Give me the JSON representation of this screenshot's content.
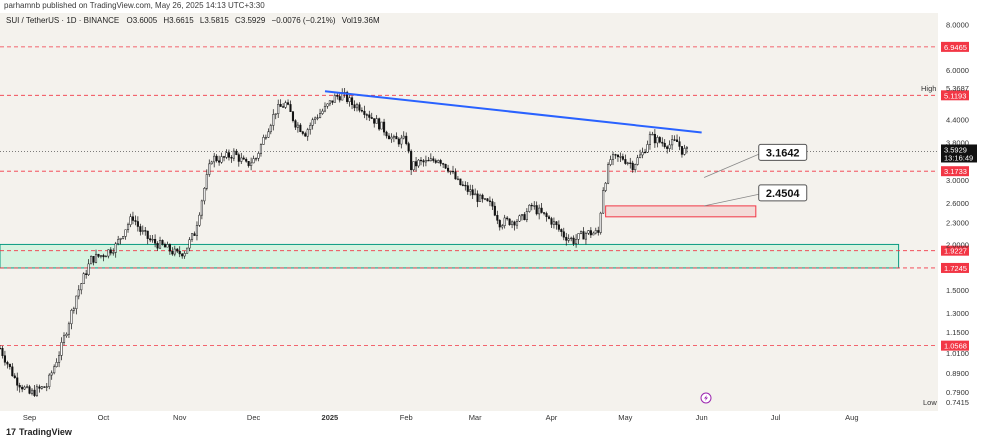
{
  "header": {
    "published_by": "parhamnb published on TradingView.com, May 26, 2025 14:13 UTC+3:30",
    "symbol_line": "SUI / TetherUS · 1D · BINANCE",
    "o_label": "O",
    "o_value": "3.6005",
    "h_label": "H",
    "h_value": "3.6615",
    "l_label": "L",
    "l_value": "3.5815",
    "c_label": "C",
    "c_value": "3.5929",
    "change": "−0.0076 (−0.21%)",
    "vol": "Vol19.36M"
  },
  "footer": {
    "brand": "TradingView",
    "brand_mark": "17"
  },
  "colors": {
    "bg": "#f4f2ed",
    "candle": "#111111",
    "trend": "#2962ff",
    "level": "#f23645",
    "zone_fill": "#d6f3e0",
    "zone_stroke": "#089981",
    "red_box": "#f23645"
  },
  "chart_data": {
    "type": "candlestick",
    "title": "SUI / TetherUS · 1D · BINANCE",
    "y_scale": "log",
    "ylim": [
      0.7,
      8.6
    ],
    "y_ticks": [
      "8.0000",
      "6.0000",
      "4.4000",
      "3.8000",
      "3.0000",
      "2.6000",
      "2.3000",
      "2.0000",
      "1.5000",
      "1.3000",
      "1.1500",
      "1.0100",
      "0.8900",
      "0.7900"
    ],
    "x_range": [
      "2024-08-20",
      "2025-09-05"
    ],
    "x_ticks": [
      {
        "date": "2024-09-01",
        "label": "Sep"
      },
      {
        "date": "2024-10-01",
        "label": "Oct"
      },
      {
        "date": "2024-11-01",
        "label": "Nov"
      },
      {
        "date": "2024-12-01",
        "label": "Dec"
      },
      {
        "date": "2025-01-01",
        "label": "2025"
      },
      {
        "date": "2025-02-01",
        "label": "Feb"
      },
      {
        "date": "2025-03-01",
        "label": "Mar"
      },
      {
        "date": "2025-04-01",
        "label": "Apr"
      },
      {
        "date": "2025-05-01",
        "label": "May"
      },
      {
        "date": "2025-06-01",
        "label": "Jun"
      },
      {
        "date": "2025-07-01",
        "label": "Jul"
      },
      {
        "date": "2025-08-01",
        "label": "Aug"
      }
    ],
    "price_points": [
      [
        "2024-08-20",
        1.04
      ],
      [
        "2024-08-26",
        0.86
      ],
      [
        "2024-09-01",
        0.78
      ],
      [
        "2024-09-08",
        0.82
      ],
      [
        "2024-09-14",
        1.05
      ],
      [
        "2024-09-20",
        1.45
      ],
      [
        "2024-09-26",
        1.82
      ],
      [
        "2024-10-01",
        1.88
      ],
      [
        "2024-10-06",
        1.98
      ],
      [
        "2024-10-10",
        2.22
      ],
      [
        "2024-10-13",
        2.38
      ],
      [
        "2024-10-16",
        2.18
      ],
      [
        "2024-10-20",
        2.05
      ],
      [
        "2024-10-25",
        1.98
      ],
      [
        "2024-10-31",
        1.88
      ],
      [
        "2024-11-03",
        1.92
      ],
      [
        "2024-11-07",
        2.15
      ],
      [
        "2024-11-11",
        2.85
      ],
      [
        "2024-11-14",
        3.45
      ],
      [
        "2024-11-18",
        3.42
      ],
      [
        "2024-11-23",
        3.55
      ],
      [
        "2024-11-28",
        3.3
      ],
      [
        "2024-12-02",
        3.45
      ],
      [
        "2024-12-06",
        4.05
      ],
      [
        "2024-12-10",
        4.65
      ],
      [
        "2024-12-14",
        4.85
      ],
      [
        "2024-12-18",
        4.3
      ],
      [
        "2024-12-22",
        4.05
      ],
      [
        "2024-12-26",
        4.45
      ],
      [
        "2024-12-30",
        4.7
      ],
      [
        "2025-01-03",
        5.05
      ],
      [
        "2025-01-06",
        5.15
      ],
      [
        "2025-01-10",
        4.85
      ],
      [
        "2025-01-14",
        4.75
      ],
      [
        "2025-01-18",
        4.45
      ],
      [
        "2025-01-22",
        4.2
      ],
      [
        "2025-01-27",
        3.85
      ],
      [
        "2025-02-01",
        3.85
      ],
      [
        "2025-02-03",
        3.25
      ],
      [
        "2025-02-06",
        3.35
      ],
      [
        "2025-02-10",
        3.35
      ],
      [
        "2025-02-14",
        3.45
      ],
      [
        "2025-02-18",
        3.25
      ],
      [
        "2025-02-22",
        2.95
      ],
      [
        "2025-02-28",
        2.75
      ],
      [
        "2025-03-04",
        2.62
      ],
      [
        "2025-03-08",
        2.55
      ],
      [
        "2025-03-11",
        2.3
      ],
      [
        "2025-03-16",
        2.32
      ],
      [
        "2025-03-20",
        2.35
      ],
      [
        "2025-03-24",
        2.55
      ],
      [
        "2025-03-28",
        2.42
      ],
      [
        "2025-04-01",
        2.32
      ],
      [
        "2025-04-06",
        2.12
      ],
      [
        "2025-04-10",
        2.05
      ],
      [
        "2025-04-15",
        2.15
      ],
      [
        "2025-04-20",
        2.15
      ],
      [
        "2025-04-22",
        2.85
      ],
      [
        "2025-04-25",
        3.42
      ],
      [
        "2025-04-30",
        3.45
      ],
      [
        "2025-05-04",
        3.3
      ],
      [
        "2025-05-08",
        3.55
      ],
      [
        "2025-05-11",
        3.95
      ],
      [
        "2025-05-15",
        3.82
      ],
      [
        "2025-05-19",
        3.75
      ],
      [
        "2025-05-22",
        3.82
      ],
      [
        "2025-05-24",
        3.62
      ],
      [
        "2025-05-26",
        3.59
      ]
    ],
    "trendline": [
      [
        "2024-12-30",
        5.25
      ],
      [
        "2025-06-01",
        4.05
      ]
    ],
    "levels": [
      {
        "value": 6.9465,
        "label": "6.9465"
      },
      {
        "value": 5.1193,
        "label": "5.1193"
      },
      {
        "value": 3.1733,
        "label": "3.1733"
      },
      {
        "value": 1.9227,
        "label": "1.9227"
      },
      {
        "value": 1.7245,
        "label": "1.7245"
      },
      {
        "value": 1.0568,
        "label": "1.0568"
      }
    ],
    "current": {
      "value": 3.5929,
      "label": "3.5929",
      "countdown": "13:16:49"
    },
    "high": {
      "label": "High",
      "value": "5.3687",
      "price": 5.3687
    },
    "low": {
      "label": "Low",
      "value": "0.7415",
      "price": 0.7415
    },
    "zone": {
      "from": "2024-08-20",
      "to": "2025-08-20",
      "low": 1.7245,
      "high": 2.0
    },
    "red_box": {
      "from": "2025-04-23",
      "to": "2025-06-23",
      "low": 2.38,
      "high": 2.55
    },
    "callouts": [
      {
        "label": "3.1642",
        "anchor_date": "2025-06-02",
        "anchor_price": 3.05,
        "box_date": "2025-06-25",
        "box_price": 3.55
      },
      {
        "label": "2.4504",
        "anchor_date": "2025-06-02",
        "anchor_price": 2.55,
        "box_date": "2025-06-25",
        "box_price": 2.75
      }
    ]
  }
}
